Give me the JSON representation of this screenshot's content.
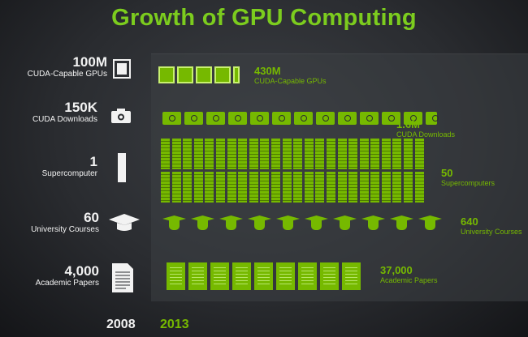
{
  "title": "Growth of GPU Computing",
  "colors": {
    "accent": "#76b900",
    "title": "#7ccc1e",
    "text": "#f2f2f2",
    "background": "#2a2c30"
  },
  "year_start": "2008",
  "year_end": "2013",
  "rows": [
    {
      "id": "gpus",
      "from_value": "100M",
      "from_label": "CUDA-Capable GPUs",
      "to_value": "430M",
      "to_label": "CUDA-Capable GPUs",
      "icon": "gpu-card-icon"
    },
    {
      "id": "downloads",
      "from_value": "150K",
      "from_label": "CUDA Downloads",
      "to_value": "1.6M",
      "to_label": "CUDA Downloads",
      "icon": "camera-download-icon"
    },
    {
      "id": "supercomputers",
      "from_value": "1",
      "from_label": "Supercomputer",
      "to_value": "50",
      "to_label": "Supercomputers",
      "icon": "server-rack-icon"
    },
    {
      "id": "courses",
      "from_value": "60",
      "from_label": "University Courses",
      "to_value": "640",
      "to_label": "University Courses",
      "icon": "graduation-cap-icon"
    },
    {
      "id": "papers",
      "from_value": "4,000",
      "from_label": "Academic Papers",
      "to_value": "37,000",
      "to_label": "Academic Papers",
      "icon": "document-icon"
    }
  ]
}
